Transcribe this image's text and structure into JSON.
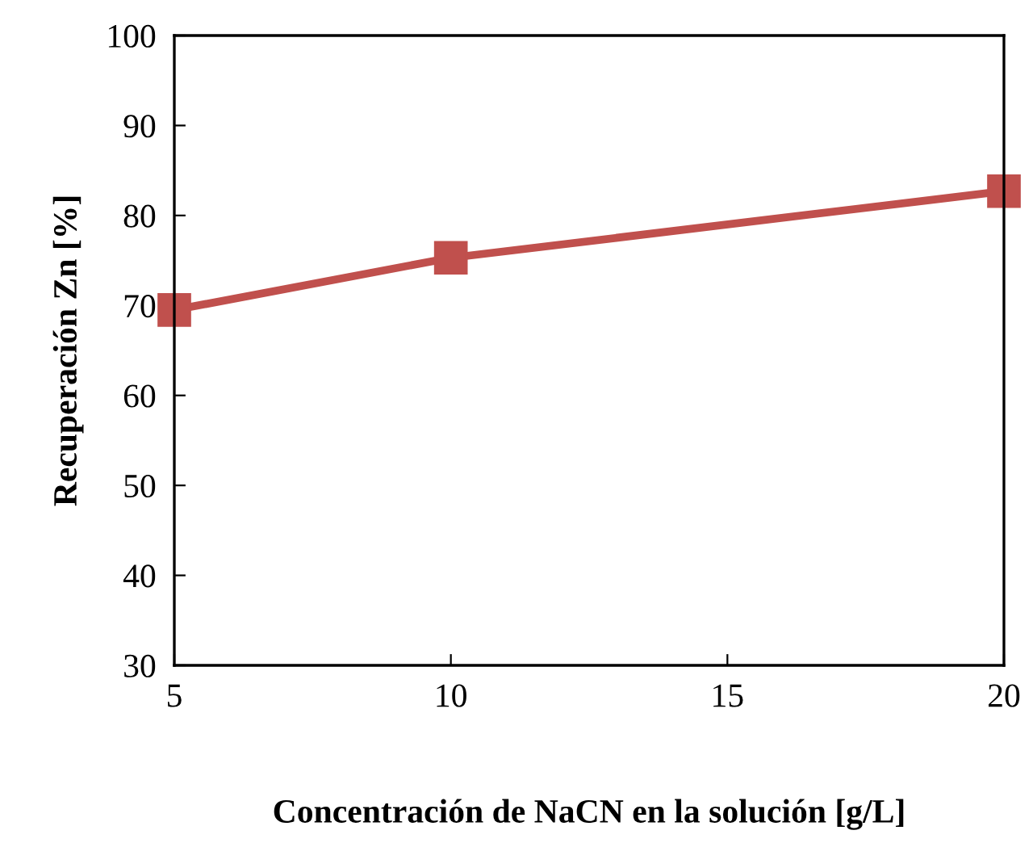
{
  "chart_data": {
    "type": "line",
    "xlabel": "Concentración de NaCN en la solución [g/L]",
    "ylabel": "Recuperación Zn [%]",
    "x": [
      5,
      10,
      20
    ],
    "series": [
      {
        "color": "#c0504d",
        "values": [
          69.5,
          75.3,
          82.7
        ]
      }
    ],
    "xlim": [
      5,
      20
    ],
    "xticks": [
      5,
      10,
      15,
      20
    ],
    "ylim": [
      30,
      100
    ],
    "yticks": [
      30,
      40,
      50,
      60,
      70,
      80,
      90,
      100
    ],
    "grid": false,
    "legend": false,
    "marker": "square",
    "line_style": "solid"
  }
}
